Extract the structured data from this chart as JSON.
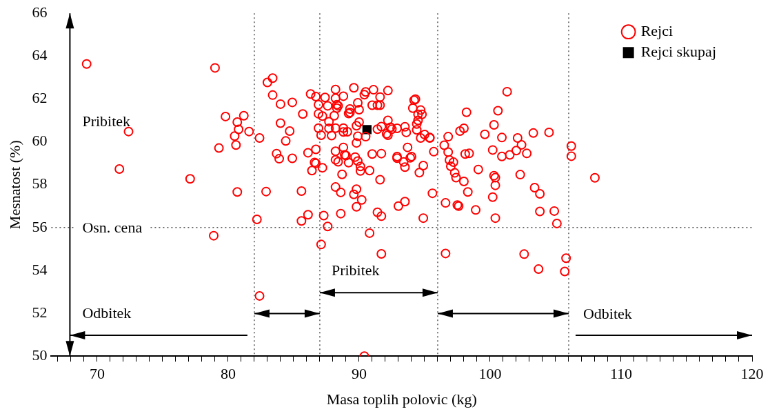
{
  "chart_data": {
    "type": "scatter",
    "xlabel": "Masa toplih polovic (kg)",
    "ylabel": "Mesnatost (%)",
    "xlim": [
      66.5,
      120
    ],
    "ylim": [
      50,
      66
    ],
    "xticks": [
      {
        "value": 67,
        "label": null
      },
      {
        "value": 68,
        "label": null
      },
      {
        "value": 69,
        "label": null
      },
      70,
      {
        "value": 71,
        "label": null
      },
      {
        "value": 72,
        "label": null
      },
      {
        "value": 73,
        "label": null
      },
      {
        "value": 74,
        "label": null
      },
      {
        "value": 75,
        "label": null
      },
      {
        "value": 76,
        "label": null
      },
      {
        "value": 77,
        "label": null
      },
      {
        "value": 78,
        "label": null
      },
      {
        "value": 79,
        "label": null
      },
      80,
      {
        "value": 81,
        "label": null
      },
      {
        "value": 82,
        "label": null
      },
      {
        "value": 83,
        "label": null
      },
      {
        "value": 84,
        "label": null
      },
      {
        "value": 85,
        "label": null
      },
      {
        "value": 86,
        "label": null
      },
      {
        "value": 87,
        "label": null
      },
      {
        "value": 88,
        "label": null
      },
      {
        "value": 89,
        "label": null
      },
      90,
      {
        "value": 91,
        "label": null
      },
      {
        "value": 92,
        "label": null
      },
      {
        "value": 93,
        "label": null
      },
      {
        "value": 94,
        "label": null
      },
      {
        "value": 95,
        "label": null
      },
      {
        "value": 96,
        "label": null
      },
      {
        "value": 97,
        "label": null
      },
      {
        "value": 98,
        "label": null
      },
      {
        "value": 99,
        "label": null
      },
      100,
      {
        "value": 101,
        "label": null
      },
      {
        "value": 102,
        "label": null
      },
      {
        "value": 103,
        "label": null
      },
      {
        "value": 104,
        "label": null
      },
      {
        "value": 105,
        "label": null
      },
      {
        "value": 106,
        "label": null
      },
      {
        "value": 107,
        "label": null
      },
      {
        "value": 108,
        "label": null
      },
      {
        "value": 109,
        "label": null
      },
      110,
      {
        "value": 111,
        "label": null
      },
      {
        "value": 112,
        "label": null
      },
      {
        "value": 113,
        "label": null
      },
      {
        "value": 114,
        "label": null
      },
      {
        "value": 115,
        "label": null
      },
      {
        "value": 116,
        "label": null
      },
      {
        "value": 117,
        "label": null
      },
      {
        "value": 118,
        "label": null
      },
      {
        "value": 119,
        "label": null
      },
      120
    ],
    "yticks": [
      50,
      52,
      54,
      56,
      58,
      60,
      62,
      64,
      66
    ],
    "legend": "top right",
    "ref_lines": [
      {
        "axis": "x",
        "value": 82,
        "label": null,
        "color": "#555555",
        "line_style": "dotted"
      },
      {
        "axis": "x",
        "value": 87,
        "label": null,
        "color": "#555555",
        "line_style": "dotted"
      },
      {
        "axis": "x",
        "value": 96,
        "label": null,
        "color": "#555555",
        "line_style": "dotted"
      },
      {
        "axis": "x",
        "value": 106,
        "label": null,
        "color": "#555555",
        "line_style": "dotted"
      },
      {
        "axis": "y",
        "value": 56,
        "label": "Osn. cena",
        "color": "#555555",
        "line_style": "dotted"
      }
    ],
    "annotations": [
      "Pribitek",
      "Odbitek",
      {
        "text": "Pribitek",
        "x": 87,
        "y": 53.0
      },
      {
        "text": "Odbitek",
        "x": 106,
        "y": 52.0
      }
    ],
    "series": [
      {
        "name": "Rejci",
        "color": "#ff0000",
        "marker": "circle",
        "x": [
          69.2,
          79.0,
          83.4,
          83.0,
          83.4,
          84.0,
          84.9,
          79.8,
          81.2,
          80.7,
          80.8,
          81.6,
          80.5,
          82.4,
          84.0,
          84.7,
          84.4,
          72.4,
          80.6,
          79.3,
          83.7,
          83.9,
          84.9,
          71.7,
          77.1,
          80.7,
          82.9,
          82.2,
          78.9,
          82.4,
          85.6,
          86.1,
          87.3,
          87.6,
          87.1,
          88.6,
          89.8,
          90.2,
          89.6,
          88.6,
          85.6,
          90.8,
          91.4,
          91.7,
          91.7,
          93.0,
          93.5,
          94.9,
          95.6,
          96.6,
          97.5,
          97.6,
          96.6,
          90.4,
          98.3,
          98.9,
          100.2,
          100.4,
          103.8,
          103.8,
          104.9,
          105.1,
          102.6,
          105.8,
          103.7,
          105.7,
          101.3,
          98.2,
          100.6,
          100.3,
          98.0,
          97.7,
          99.6,
          100.9,
          102.1,
          103.3,
          104.5,
          102.4,
          102.0,
          102.8,
          101.5,
          100.9,
          100.2,
          98.4,
          98.1,
          96.8,
          96.5,
          96.8,
          95.4,
          95.7,
          96.9,
          97.2,
          97.0,
          99.1,
          97.3,
          97.4,
          98.0,
          100.3,
          100.4,
          102.3,
          100.4,
          103.4,
          106.2,
          106.2,
          108.0,
          85.7,
          86.3,
          86.7,
          86.9,
          86.9,
          87.2,
          87.4,
          87.6,
          88.2,
          88.2,
          88.3,
          88.4,
          88.3,
          88.8,
          88.1,
          87.7,
          86.9,
          87.1,
          87.7,
          87.9,
          88.2,
          88.8,
          88.8,
          89.1,
          89.3,
          89.2,
          89.3,
          89.6,
          89.9,
          90.0,
          90.0,
          89.8,
          89.9,
          89.8,
          90.4,
          90.5,
          91.1,
          91.6,
          92.2,
          91.0,
          91.4,
          91.6,
          90.5,
          91.4,
          91.7,
          92.2,
          92.1,
          92.2,
          92.4,
          92.5,
          92.9,
          93.5,
          93.6,
          94.1,
          94.2,
          94.3,
          94.7,
          94.8,
          94.5,
          94.5,
          94.4,
          94.4,
          95.0,
          95.4,
          94.7,
          88.8,
          88.2,
          88.9,
          89.0,
          88.2,
          88.4,
          89.2,
          89.7,
          89.9,
          90.1,
          90.1,
          90.8,
          88.7,
          91.0,
          91.7,
          92.9,
          92.9,
          93.4,
          93.5,
          93.7,
          93.9,
          94.0,
          94.9,
          94.6,
          86.1,
          86.7,
          86.6,
          86.7,
          86.4,
          87.2,
          91.6,
          88.2,
          89.8
        ],
        "values": [
          63.63,
          63.45,
          62.97,
          62.77,
          62.18,
          61.76,
          61.84,
          61.18,
          61.22,
          60.92,
          60.58,
          60.48,
          60.27,
          60.18,
          60.87,
          60.5,
          60.04,
          60.48,
          59.85,
          59.71,
          59.45,
          59.21,
          59.23,
          58.73,
          58.27,
          57.66,
          57.68,
          56.38,
          55.62,
          52.81,
          56.31,
          56.6,
          56.56,
          56.05,
          55.21,
          56.65,
          56.97,
          57.29,
          57.55,
          57.64,
          57.7,
          55.74,
          56.71,
          56.53,
          54.77,
          57.0,
          57.21,
          56.44,
          57.6,
          57.15,
          57.05,
          57.0,
          54.79,
          50.0,
          57.66,
          56.82,
          57.42,
          56.44,
          57.57,
          56.75,
          56.77,
          56.19,
          54.76,
          54.57,
          54.06,
          53.95,
          62.34,
          61.38,
          61.45,
          60.79,
          60.63,
          60.5,
          60.35,
          60.2,
          60.18,
          60.41,
          60.44,
          59.86,
          59.59,
          59.46,
          59.39,
          59.32,
          59.62,
          59.46,
          59.43,
          60.24,
          59.84,
          59.52,
          60.2,
          59.54,
          59.15,
          59.05,
          58.86,
          58.71,
          58.55,
          58.33,
          58.15,
          58.42,
          58.33,
          58.47,
          57.97,
          57.86,
          59.8,
          59.33,
          58.32,
          61.3,
          62.23,
          62.11,
          61.73,
          61.31,
          61.2,
          62.07,
          61.68,
          62.44,
          62.03,
          61.73,
          61.68,
          61.57,
          62.13,
          61.22,
          60.94,
          60.64,
          60.31,
          60.63,
          60.29,
          60.64,
          60.46,
          60.64,
          60.47,
          61.53,
          61.32,
          61.37,
          62.52,
          61.82,
          61.5,
          60.92,
          60.75,
          60.26,
          59.95,
          62.2,
          62.33,
          62.43,
          62.09,
          62.39,
          61.71,
          61.71,
          61.71,
          60.24,
          60.59,
          60.71,
          61.0,
          60.37,
          60.31,
          60.68,
          60.59,
          60.63,
          60.7,
          60.44,
          61.57,
          61.94,
          61.99,
          61.48,
          61.28,
          61.28,
          61.0,
          60.83,
          60.56,
          60.34,
          60.18,
          60.18,
          59.74,
          59.56,
          59.39,
          59.36,
          59.16,
          59.07,
          59.03,
          59.29,
          59.1,
          58.85,
          58.64,
          58.66,
          58.48,
          59.43,
          59.45,
          59.31,
          59.24,
          59.06,
          58.82,
          59.74,
          59.25,
          59.31,
          58.89,
          58.56,
          59.49,
          59.65,
          59.04,
          59.0,
          58.66,
          58.79,
          58.23,
          57.89,
          57.79
        ]
      },
      {
        "name": "Rejci skupaj",
        "color": "#000000",
        "marker": "square",
        "x": [
          90.6
        ],
        "values": [
          60.57
        ]
      }
    ]
  }
}
